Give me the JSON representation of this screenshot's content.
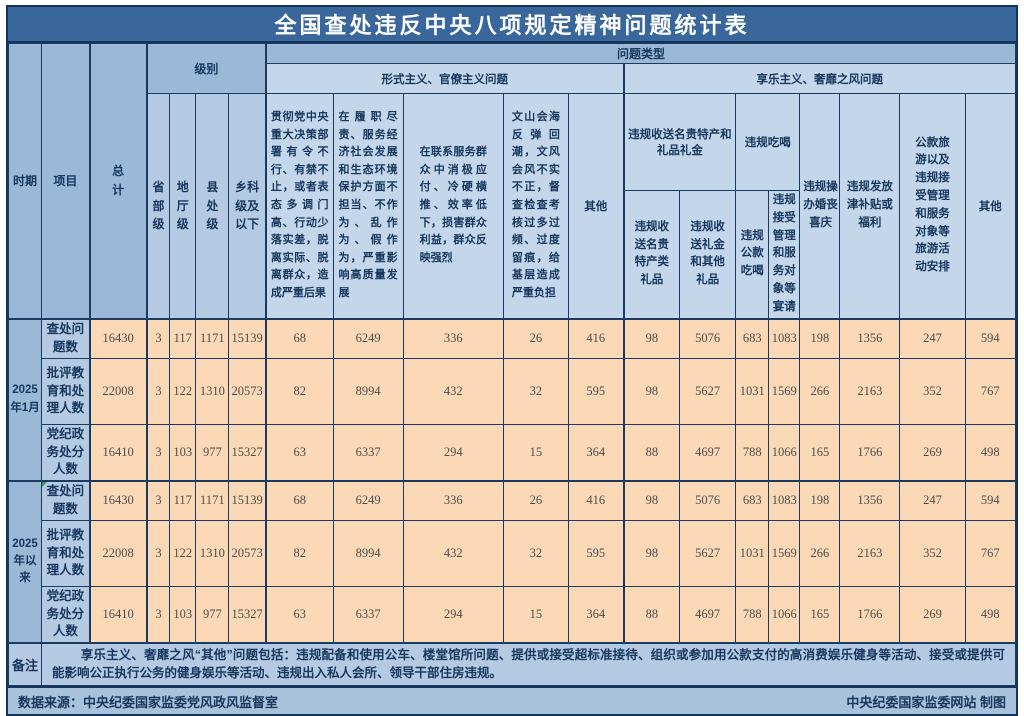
{
  "title": "全国查处违反中央八项规定精神问题统计表",
  "header": {
    "period": "时期",
    "item": "项目",
    "total": "总计",
    "level": "级别",
    "problem_type": "问题类型",
    "levels": [
      "省部级",
      "地厅级",
      "县处级",
      "乡科级及以下"
    ],
    "formalism_label": "形式主义、官僚主义问题",
    "formalism_cols": [
      "贯彻党中央重大决策部署有令不行、有禁不止，或者表态多调门高、行动少落实差，脱离实际、脱离群众，造成严重后果",
      "在履职尽责、服务经济社会发展和生态环境保护方面不担当、不作为、乱作为、假作为，严重影响高质量发展",
      "在联系服务群众中消极应付、冷硬横推、效率低下，损害群众利益，群众反映强烈",
      "文山会海反弹回潮，文风会风不实不正，督查检查考核过多过频、过度留痕，给基层造成严重负担",
      "其他"
    ],
    "hedonism_label": "享乐主义、奢靡之风问题",
    "gift_group": "违规收送名贵特产和礼品礼金",
    "gift_cols": [
      "违规收送名贵特产类礼品",
      "违规收送礼金和其他礼品"
    ],
    "dining_group": "违规吃喝",
    "dining_cols": [
      "违规公款吃喝",
      "违规接受管理和服务对象等宴请"
    ],
    "wedding": "违规操办婚丧喜庆",
    "allowance": "违规发放津补贴或福利",
    "travel": "公款旅游以及违规接受管理和服务对象等旅游活动安排",
    "other": "其他"
  },
  "chart_data": {
    "type": "table",
    "title": "全国查处违反中央八项规定精神问题统计表",
    "value_columns": [
      "总计",
      "省部级",
      "地厅级",
      "县处级",
      "乡科级及以下",
      "贯彻党中央重大决策部署有令不行、有禁不止，或者表态多调门高、行动少落实差，脱离实际、脱离群众，造成严重后果",
      "在履职尽责、服务经济社会发展和生态环境保护方面不担当、不作为、乱作为、假作为，严重影响高质量发展",
      "在联系服务群众中消极应付、冷硬横推、效率低下，损害群众利益，群众反映强烈",
      "文山会海反弹回潮，文风会风不实不正，督查检查考核过多过频、过度留痕，给基层造成严重负担",
      "其他（形式主义、官僚主义问题）",
      "违规收送名贵特产类礼品",
      "违规收送礼金和其他礼品",
      "违规公款吃喝",
      "违规接受管理和服务对象等宴请",
      "违规操办婚丧喜庆",
      "违规发放津补贴或福利",
      "公款旅游以及违规接受管理和服务对象等旅游活动安排",
      "其他（享乐主义、奢靡之风问题）"
    ],
    "groups": [
      {
        "period": "2025年1月",
        "rows": [
          {
            "item": "查处问题数",
            "values": [
              16430,
              3,
              117,
              1171,
              15139,
              68,
              6249,
              336,
              26,
              416,
              98,
              5076,
              683,
              1083,
              198,
              1356,
              247,
              594
            ]
          },
          {
            "item": "批评教育和处理人数",
            "values": [
              22008,
              3,
              122,
              1310,
              20573,
              82,
              8994,
              432,
              32,
              595,
              98,
              5627,
              1031,
              1569,
              266,
              2163,
              352,
              767
            ]
          },
          {
            "item": "党纪政务处分人数",
            "values": [
              16410,
              3,
              103,
              977,
              15327,
              63,
              6337,
              294,
              15,
              364,
              88,
              4697,
              788,
              1066,
              165,
              1766,
              269,
              498
            ]
          }
        ]
      },
      {
        "period": "2025年以来",
        "rows": [
          {
            "item": "查处问题数",
            "values": [
              16430,
              3,
              117,
              1171,
              15139,
              68,
              6249,
              336,
              26,
              416,
              98,
              5076,
              683,
              1083,
              198,
              1356,
              247,
              594
            ]
          },
          {
            "item": "批评教育和处理人数",
            "values": [
              22008,
              3,
              122,
              1310,
              20573,
              82,
              8994,
              432,
              32,
              595,
              98,
              5627,
              1031,
              1569,
              266,
              2163,
              352,
              767
            ]
          },
          {
            "item": "党纪政务处分人数",
            "values": [
              16410,
              3,
              103,
              977,
              15327,
              63,
              6337,
              294,
              15,
              364,
              88,
              4697,
              788,
              1066,
              165,
              1766,
              269,
              498
            ]
          }
        ]
      }
    ]
  },
  "remarks": {
    "label": "备注",
    "text": "享乐主义、奢靡之风“其他”问题包括：违规配备和使用公车、楼堂馆所问题、提供或接受超标准接待、组织或参加用公款支付的高消费娱乐健身等活动、接受或提供可能影响公正执行公务的健身娱乐等活动、违规出入私人会所、领导干部住房违规。",
    "colspan": 19
  },
  "footer": {
    "source": "数据来源：中央纪委国家监委党风政风监督室",
    "credit": "中央纪委国家监委网站 制图"
  },
  "colors": {
    "title_bg": "#39679b",
    "header_dark": "#9bb8d6",
    "header_mid": "#b3cae2",
    "header_light": "#c3d6ea",
    "data_bg": "#fcd9b6",
    "border": "#15345c",
    "text_navy": "#17375e",
    "corner_mark_green": "#3c9a45"
  }
}
